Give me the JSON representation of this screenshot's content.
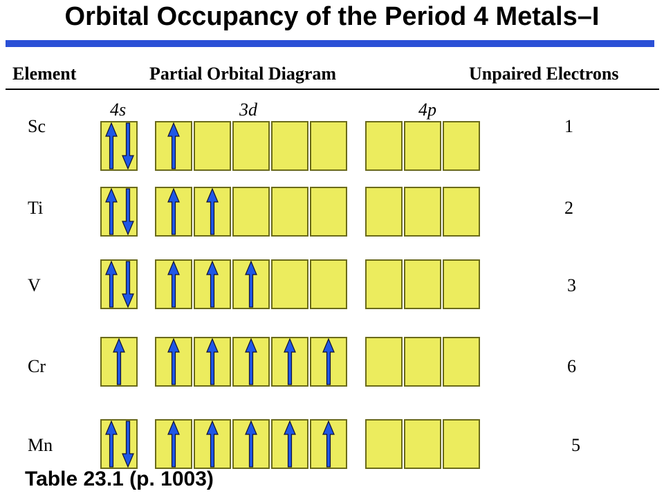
{
  "title": "Orbital Occupancy of the Period 4 Metals–I",
  "headers": {
    "element": "Element",
    "diagram": "Partial Orbital Diagram",
    "unpaired": "Unpaired Electrons"
  },
  "subshells": [
    {
      "italic": "s",
      "n": "4",
      "slots": 1
    },
    {
      "italic": "d",
      "n": "3",
      "slots": 5
    },
    {
      "italic": "p",
      "n": "4",
      "slots": 3
    }
  ],
  "subshell_labels": [
    "4s",
    "3d",
    "4p"
  ],
  "colors": {
    "title_rule": "#2a50d6",
    "box_fill": "#ecec5e",
    "box_border": "#6a6a1a",
    "arrow_fill": "#1f57e6",
    "arrow_outline": "#111133"
  },
  "arrow_legend": {
    "u": "spin-up-arrow",
    "d": "spin-down-arrow"
  },
  "rows": [
    {
      "element": "Sc",
      "unpaired": "1",
      "s": [
        "ud"
      ],
      "d": [
        "u",
        "",
        "",
        "",
        ""
      ],
      "p": [
        "",
        "",
        ""
      ]
    },
    {
      "element": "Ti",
      "unpaired": "2",
      "s": [
        "ud"
      ],
      "d": [
        "u",
        "u",
        "",
        "",
        ""
      ],
      "p": [
        "",
        "",
        ""
      ]
    },
    {
      "element": "V",
      "unpaired": "3",
      "s": [
        "ud"
      ],
      "d": [
        "u",
        "u",
        "u",
        "",
        ""
      ],
      "p": [
        "",
        "",
        ""
      ]
    },
    {
      "element": "Cr",
      "unpaired": "6",
      "s": [
        "u"
      ],
      "d": [
        "u",
        "u",
        "u",
        "u",
        "u"
      ],
      "p": [
        "",
        "",
        ""
      ]
    },
    {
      "element": "Mn",
      "unpaired": "5",
      "s": [
        "ud"
      ],
      "d": [
        "u",
        "u",
        "u",
        "u",
        "u"
      ],
      "p": [
        "",
        "",
        ""
      ]
    }
  ],
  "footer": "Table 23.1 (p. 1003)"
}
